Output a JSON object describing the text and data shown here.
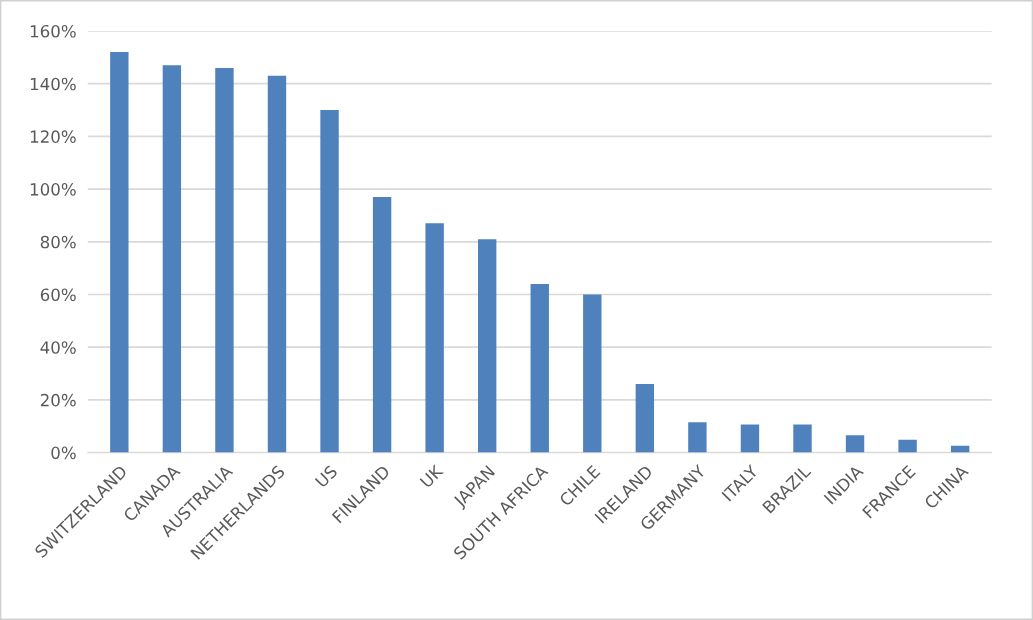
{
  "chart_data": {
    "type": "bar",
    "categories": [
      "SWITZERLAND",
      "CANADA",
      "AUSTRALIA",
      "NETHERLANDS",
      "US",
      "FINLAND",
      "UK",
      "JAPAN",
      "SOUTH AFRICA",
      "CHILE",
      "IRELAND",
      "GERMANY",
      "ITALY",
      "BRAZIL",
      "INDIA",
      "FRANCE",
      "CHINA"
    ],
    "values": [
      152,
      147,
      146,
      143,
      130,
      97,
      87,
      81,
      64,
      60,
      26,
      11.5,
      10.7,
      10.7,
      6.6,
      4.9,
      2.6
    ],
    "color": "#4f81bd",
    "ylim": [
      0,
      160
    ],
    "yticks": [
      {
        "value": 0,
        "label": "0%"
      },
      {
        "value": 20,
        "label": "20%"
      },
      {
        "value": 40,
        "label": "40%"
      },
      {
        "value": 60,
        "label": "60%"
      },
      {
        "value": 80,
        "label": "80%"
      },
      {
        "value": 100,
        "label": "100%"
      },
      {
        "value": 120,
        "label": "120%"
      },
      {
        "value": 140,
        "label": "140%"
      },
      {
        "value": 160,
        "label": "160%"
      }
    ],
    "grid": "y"
  }
}
